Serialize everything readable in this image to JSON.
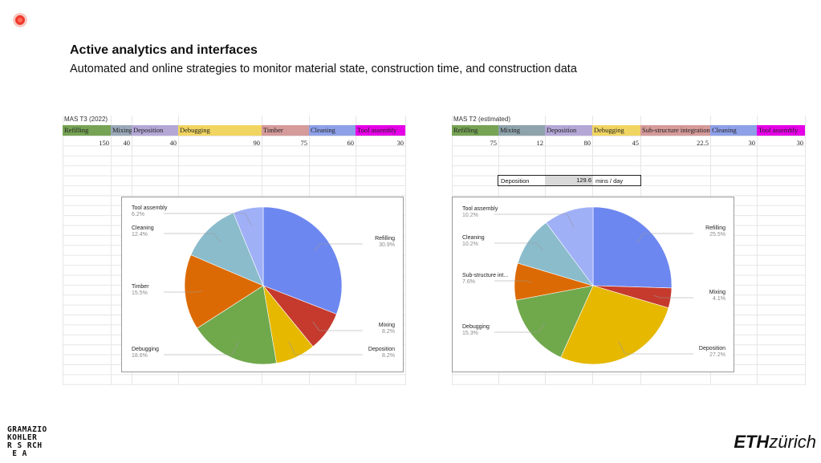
{
  "slide": {
    "title": "Active analytics and interfaces",
    "subtitle": "Automated and online strategies to monitor material state, construction time, and construction data"
  },
  "logos": {
    "left_lines": [
      "GRAMAZIO",
      "KOHLER",
      "R S RCH",
      " E A"
    ],
    "right_eth": "ETH",
    "right_zurich": "zürich"
  },
  "tables": [
    {
      "caption": "MAS T3 (2022)",
      "headers": [
        "Refilling",
        "Mixing",
        "Deposition",
        "Debugging",
        "Timber",
        "Cleaning",
        "Tool assembly"
      ],
      "values": [
        "150",
        "40",
        "40",
        "90",
        "75",
        "60",
        "30"
      ],
      "colors": [
        "#76a354",
        "#9aa8b8",
        "#b4a7d6",
        "#f1d562",
        "#d59a9a",
        "#8ea0e8",
        "#e600e6"
      ]
    },
    {
      "caption": "MAS T2 (estimated)",
      "headers": [
        "Refilling",
        "Mixing",
        "Deposition",
        "Debugging",
        "Sub-structure integration",
        "Cleaning",
        "Tool assembly"
      ],
      "values": [
        "75",
        "12",
        "80",
        "45",
        "22.5",
        "30",
        "30"
      ],
      "colors": [
        "#76a354",
        "#8ea3ab",
        "#b4a7d6",
        "#f1d562",
        "#d59a9a",
        "#8ea0e8",
        "#e600e6"
      ]
    }
  ],
  "deposition_box": {
    "label": "Deposition",
    "value": "129.6",
    "unit": "mins / day"
  },
  "chart_data": [
    {
      "type": "pie",
      "slices": [
        {
          "label": "Refilling",
          "value": 30.9,
          "pct": "30.9%",
          "color": "#6d87f0"
        },
        {
          "label": "Mixing",
          "value": 8.2,
          "pct": "8.2%",
          "color": "#c53a2d"
        },
        {
          "label": "Deposition",
          "value": 8.2,
          "pct": "8.2%",
          "color": "#e6b800"
        },
        {
          "label": "Debugging",
          "value": 18.6,
          "pct": "18.6%",
          "color": "#70a84c"
        },
        {
          "label": "Timber",
          "value": 15.5,
          "pct": "15.5%",
          "color": "#dc6a04"
        },
        {
          "label": "Cleaning",
          "value": 12.4,
          "pct": "12.4%",
          "color": "#8bbccc"
        },
        {
          "label": "Tool assembly",
          "value": 6.2,
          "pct": "6.2%",
          "color": "#9fb0f7"
        }
      ]
    },
    {
      "type": "pie",
      "slices": [
        {
          "label": "Refilling",
          "value": 25.5,
          "pct": "25.5%",
          "color": "#6d87f0"
        },
        {
          "label": "Mixing",
          "value": 4.1,
          "pct": "4.1%",
          "color": "#c53a2d"
        },
        {
          "label": "Deposition",
          "value": 27.2,
          "pct": "27.2%",
          "color": "#e6b800"
        },
        {
          "label": "Debugging",
          "value": 15.3,
          "pct": "15.3%",
          "color": "#70a84c"
        },
        {
          "label": "Sub-structure int...",
          "value": 7.6,
          "pct": "7.6%",
          "color": "#dc6a04"
        },
        {
          "label": "Cleaning",
          "value": 10.2,
          "pct": "10.2%",
          "color": "#8bbccc"
        },
        {
          "label": "Tool assembly",
          "value": 10.2,
          "pct": "10.2%",
          "color": "#9fb0f7"
        }
      ]
    }
  ]
}
